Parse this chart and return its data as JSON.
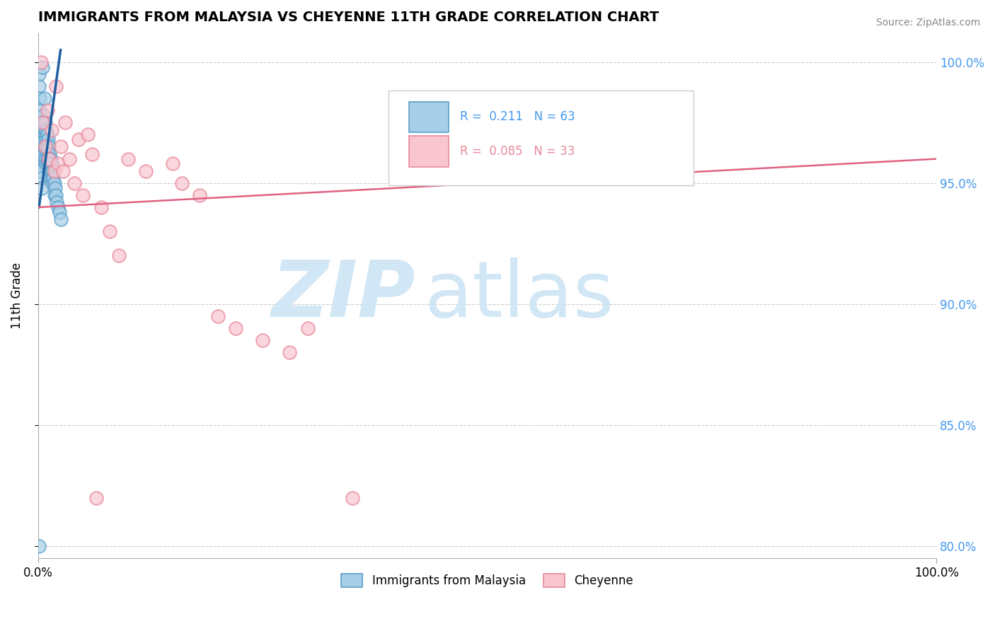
{
  "title": "IMMIGRANTS FROM MALAYSIA VS CHEYENNE 11TH GRADE CORRELATION CHART",
  "source_text": "Source: ZipAtlas.com",
  "ylabel": "11th Grade",
  "xlim": [
    0.0,
    1.0
  ],
  "ylim": [
    0.795,
    1.012
  ],
  "legend_labels": [
    "Immigrants from Malaysia",
    "Cheyenne"
  ],
  "R_blue": 0.211,
  "N_blue": 63,
  "R_pink": 0.085,
  "N_pink": 33,
  "blue_color": "#a8cfe8",
  "blue_edge_color": "#5b9ec9",
  "pink_color": "#f9c6d0",
  "pink_edge_color": "#e8889a",
  "blue_line_color": "#1f5f9f",
  "pink_line_color": "#e06080",
  "watermark_zip_color": "#cce5f5",
  "watermark_atlas_color": "#cce5f5",
  "right_tick_color": "#4499ee",
  "ytick_positions": [
    0.8,
    0.85,
    0.9,
    0.95,
    1.0
  ],
  "ytick_labels": [
    "80.0%",
    "85.0%",
    "90.0%",
    "95.0%",
    "100.0%"
  ],
  "blue_scatter_x": [
    0.001,
    0.001,
    0.002,
    0.002,
    0.002,
    0.003,
    0.003,
    0.003,
    0.003,
    0.004,
    0.004,
    0.004,
    0.004,
    0.005,
    0.005,
    0.005,
    0.005,
    0.005,
    0.006,
    0.006,
    0.006,
    0.006,
    0.007,
    0.007,
    0.007,
    0.007,
    0.007,
    0.008,
    0.008,
    0.008,
    0.008,
    0.009,
    0.009,
    0.009,
    0.009,
    0.01,
    0.01,
    0.01,
    0.011,
    0.011,
    0.011,
    0.012,
    0.012,
    0.012,
    0.013,
    0.013,
    0.013,
    0.014,
    0.014,
    0.015,
    0.015,
    0.016,
    0.016,
    0.017,
    0.018,
    0.018,
    0.019,
    0.02,
    0.021,
    0.022,
    0.024,
    0.025,
    0.001
  ],
  "blue_scatter_y": [
    0.995,
    0.99,
    0.985,
    0.98,
    0.975,
    0.97,
    0.968,
    0.965,
    0.96,
    0.958,
    0.955,
    0.952,
    0.948,
    0.998,
    0.975,
    0.97,
    0.965,
    0.96,
    0.978,
    0.972,
    0.968,
    0.962,
    0.985,
    0.975,
    0.97,
    0.965,
    0.96,
    0.975,
    0.97,
    0.965,
    0.96,
    0.972,
    0.968,
    0.963,
    0.958,
    0.97,
    0.965,
    0.96,
    0.968,
    0.963,
    0.958,
    0.965,
    0.96,
    0.955,
    0.962,
    0.958,
    0.953,
    0.96,
    0.955,
    0.958,
    0.953,
    0.955,
    0.95,
    0.952,
    0.95,
    0.945,
    0.948,
    0.945,
    0.942,
    0.94,
    0.938,
    0.935,
    0.8
  ],
  "pink_scatter_x": [
    0.003,
    0.005,
    0.008,
    0.01,
    0.012,
    0.015,
    0.018,
    0.02,
    0.022,
    0.025,
    0.028,
    0.03,
    0.035,
    0.04,
    0.045,
    0.05,
    0.055,
    0.06,
    0.065,
    0.07,
    0.08,
    0.09,
    0.1,
    0.12,
    0.15,
    0.16,
    0.18,
    0.2,
    0.22,
    0.25,
    0.28,
    0.3,
    0.35
  ],
  "pink_scatter_y": [
    1.0,
    0.975,
    0.965,
    0.98,
    0.96,
    0.972,
    0.955,
    0.99,
    0.958,
    0.965,
    0.955,
    0.975,
    0.96,
    0.95,
    0.968,
    0.945,
    0.97,
    0.962,
    0.82,
    0.94,
    0.93,
    0.92,
    0.96,
    0.955,
    0.958,
    0.95,
    0.945,
    0.895,
    0.89,
    0.885,
    0.88,
    0.89,
    0.82
  ],
  "blue_line_x": [
    0.001,
    0.025
  ],
  "blue_line_y_start": 0.94,
  "blue_line_y_end": 1.005,
  "pink_line_x": [
    0.0,
    1.0
  ],
  "pink_line_y_start": 0.94,
  "pink_line_y_end": 0.96
}
